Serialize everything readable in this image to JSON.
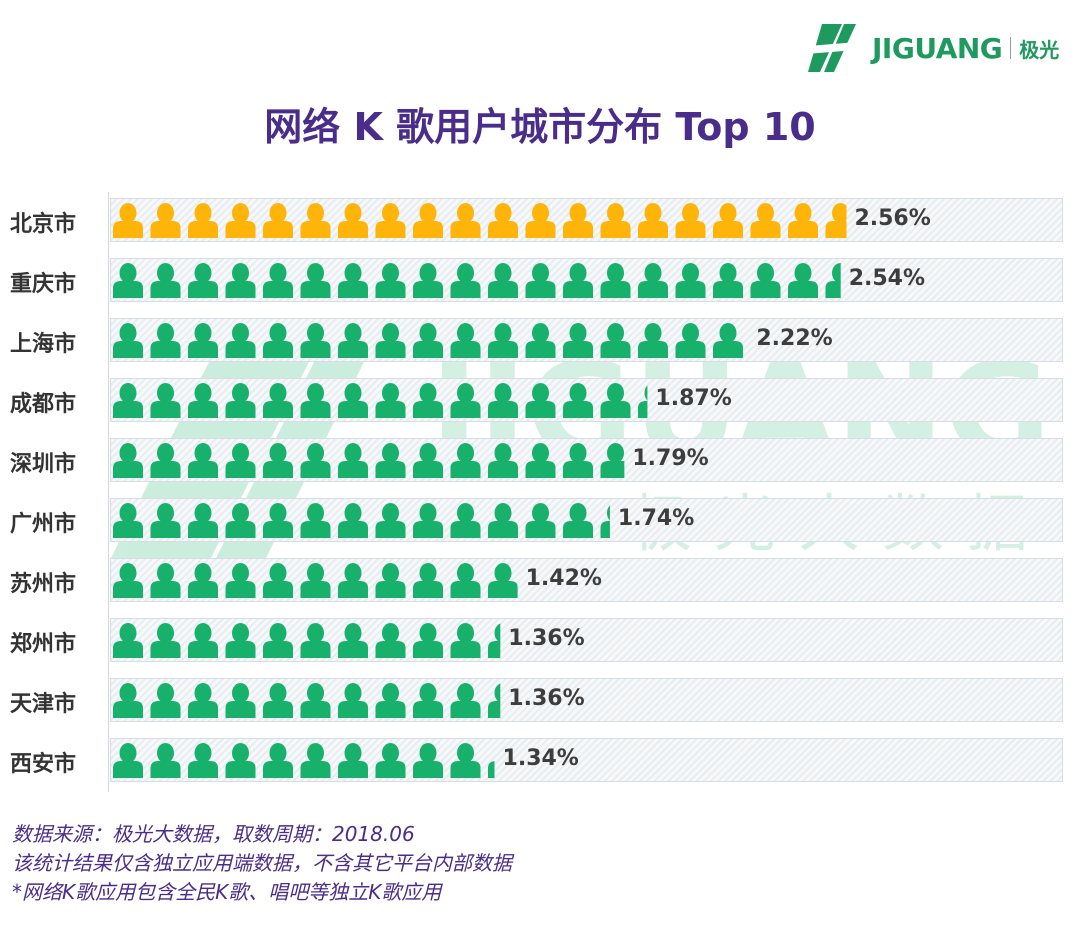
{
  "brand": {
    "name": "JIGUANG",
    "cn_name": "极光"
  },
  "watermark": {
    "word": "JIGUANG",
    "subtitle": "极光大数据"
  },
  "colors": {
    "title": "#4a2d8a",
    "highlight": "#ffb40a",
    "person": "#17b16b",
    "footer": "#4a2d8a"
  },
  "chart_data": {
    "type": "bar",
    "title": "网络 K 歌用户城市分布 Top 10",
    "icon_unit_percent": 0.13,
    "categories": [
      "北京市",
      "重庆市",
      "上海市",
      "成都市",
      "深圳市",
      "广州市",
      "苏州市",
      "郑州市",
      "天津市",
      "西安市"
    ],
    "values": [
      2.56,
      2.54,
      2.22,
      1.87,
      1.79,
      1.74,
      1.42,
      1.36,
      1.36,
      1.34
    ],
    "labels": [
      "2.56%",
      "2.54%",
      "2.22%",
      "1.87%",
      "1.79%",
      "1.74%",
      "1.42%",
      "1.36%",
      "1.36%",
      "1.34%"
    ],
    "highlight_index": 0
  },
  "footer": {
    "line1": "数据来源：极光大数据，取数周期：2018.06",
    "line2": "该统计结果仅含独立应用端数据，不含其它平台内部数据",
    "line3": " *网络K歌应用包含全民K歌、唱吧等独立K歌应用"
  }
}
